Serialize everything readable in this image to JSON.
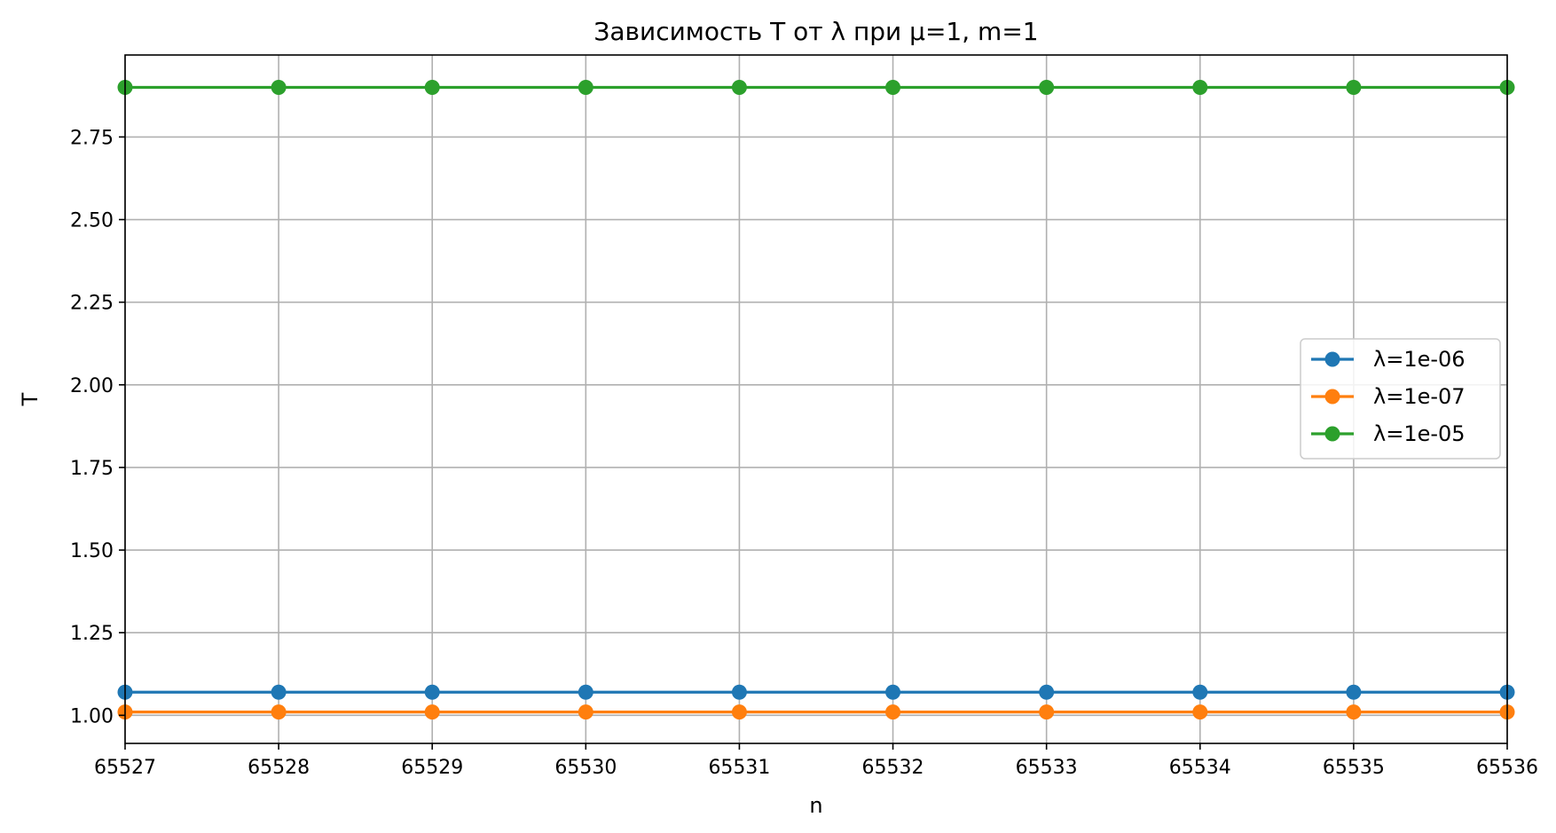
{
  "chart_data": {
    "type": "line",
    "title": "Зависимость T от λ при μ=1, m=1",
    "xlabel": "n",
    "ylabel": "T",
    "x": [
      65527,
      65528,
      65529,
      65530,
      65531,
      65532,
      65533,
      65534,
      65535,
      65536
    ],
    "xlim": [
      65527,
      65536
    ],
    "ylim": [
      0.915,
      2.998
    ],
    "xticks": [
      "65527",
      "65528",
      "65529",
      "65530",
      "65531",
      "65532",
      "65533",
      "65534",
      "65535",
      "65536"
    ],
    "yticks": [
      1.0,
      1.25,
      1.5,
      1.75,
      2.0,
      2.25,
      2.5,
      2.75
    ],
    "ytick_labels": [
      "1.00",
      "1.25",
      "1.50",
      "1.75",
      "2.00",
      "2.25",
      "2.50",
      "2.75"
    ],
    "grid": true,
    "legend_position": "center-right",
    "series": [
      {
        "name": "λ=1e-06",
        "color": "#1f77b4",
        "marker": "circle",
        "values": [
          1.07,
          1.07,
          1.07,
          1.07,
          1.07,
          1.07,
          1.07,
          1.07,
          1.07,
          1.07
        ]
      },
      {
        "name": "λ=1e-07",
        "color": "#ff7f0e",
        "marker": "circle",
        "values": [
          1.01,
          1.01,
          1.01,
          1.01,
          1.01,
          1.01,
          1.01,
          1.01,
          1.01,
          1.01
        ]
      },
      {
        "name": "λ=1e-05",
        "color": "#2ca02c",
        "marker": "circle",
        "values": [
          2.9,
          2.9,
          2.9,
          2.9,
          2.9,
          2.9,
          2.9,
          2.9,
          2.9,
          2.9
        ]
      }
    ]
  }
}
